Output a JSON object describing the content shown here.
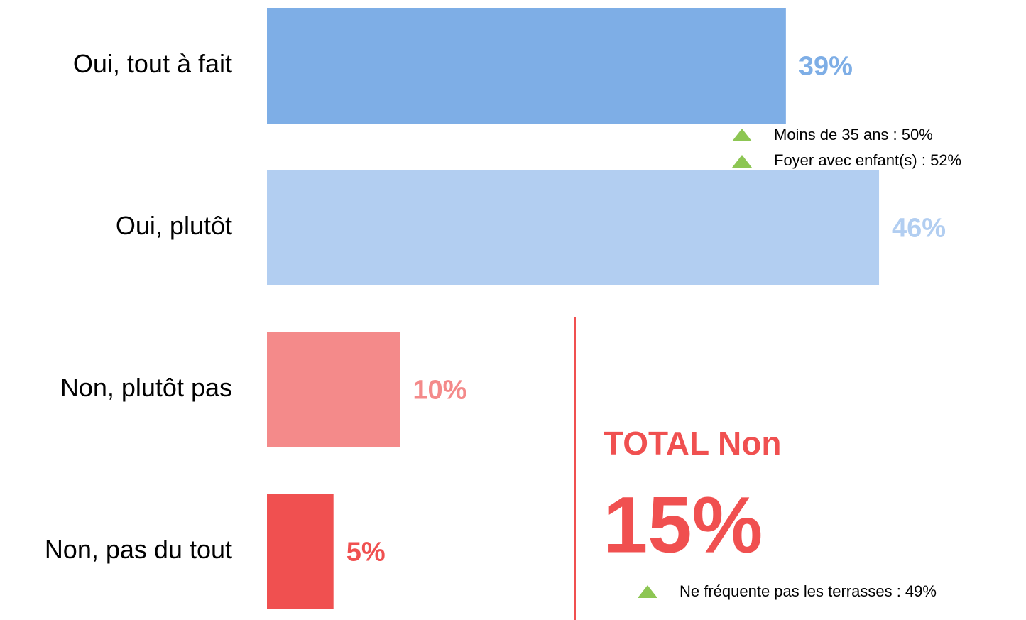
{
  "chart_data": {
    "type": "bar",
    "orientation": "horizontal",
    "categories": [
      "Oui, tout à fait",
      "Oui, plutôt",
      "Non, plutôt pas",
      "Non, pas du tout"
    ],
    "values": [
      39,
      46,
      10,
      5
    ],
    "value_labels": [
      "39%",
      "46%",
      "10%",
      "5%"
    ],
    "colors": [
      "#7eaee6",
      "#b2cef1",
      "#f48a8a",
      "#f05050"
    ],
    "annotations": {
      "oui_notes": [
        "Moins de 35 ans : 50%",
        "Foyer avec enfant(s) : 52%"
      ],
      "total_title": "TOTAL Non",
      "total_value": "15%",
      "non_notes": [
        "Ne fréquente pas les terrasses : 49%"
      ]
    }
  }
}
